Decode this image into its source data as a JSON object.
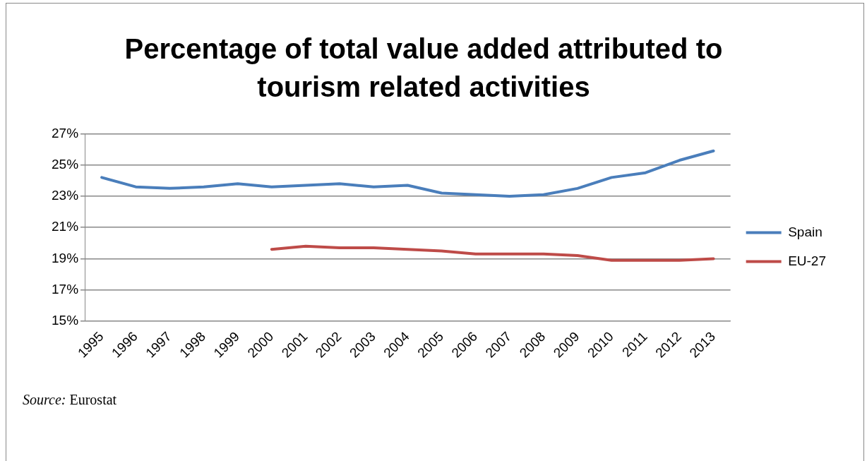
{
  "chart_data": {
    "type": "line",
    "title": "Percentage of total value added attributed to tourism related activities",
    "categories": [
      "1995",
      "1996",
      "1997",
      "1998",
      "1999",
      "2000",
      "2001",
      "2002",
      "2003",
      "2004",
      "2005",
      "2006",
      "2007",
      "2008",
      "2009",
      "2010",
      "2011",
      "2012",
      "2013"
    ],
    "series": [
      {
        "name": "Spain",
        "color": "#4a7ebb",
        "values": [
          24.2,
          23.6,
          23.5,
          23.6,
          23.8,
          23.6,
          23.7,
          23.8,
          23.6,
          23.7,
          23.2,
          23.1,
          23.0,
          23.1,
          23.5,
          24.2,
          24.5,
          25.3,
          25.9
        ]
      },
      {
        "name": "EU-27",
        "color": "#be4b48",
        "values": [
          null,
          null,
          null,
          null,
          null,
          19.6,
          19.8,
          19.7,
          19.7,
          19.6,
          19.5,
          19.3,
          19.3,
          19.3,
          19.2,
          18.9,
          18.9,
          18.9,
          19.0
        ]
      }
    ],
    "ylim": [
      15,
      27
    ],
    "yticks": [
      {
        "value": 15,
        "label": "15%"
      },
      {
        "value": 17,
        "label": "17%"
      },
      {
        "value": 19,
        "label": "19%"
      },
      {
        "value": 21,
        "label": "21%"
      },
      {
        "value": 23,
        "label": "23%"
      },
      {
        "value": 25,
        "label": "25%"
      },
      {
        "value": 27,
        "label": "27%"
      }
    ],
    "grid": "y",
    "legend": "right",
    "marker": "none",
    "line_style": "solid",
    "annotations": [
      "Source: Eurostat"
    ]
  }
}
